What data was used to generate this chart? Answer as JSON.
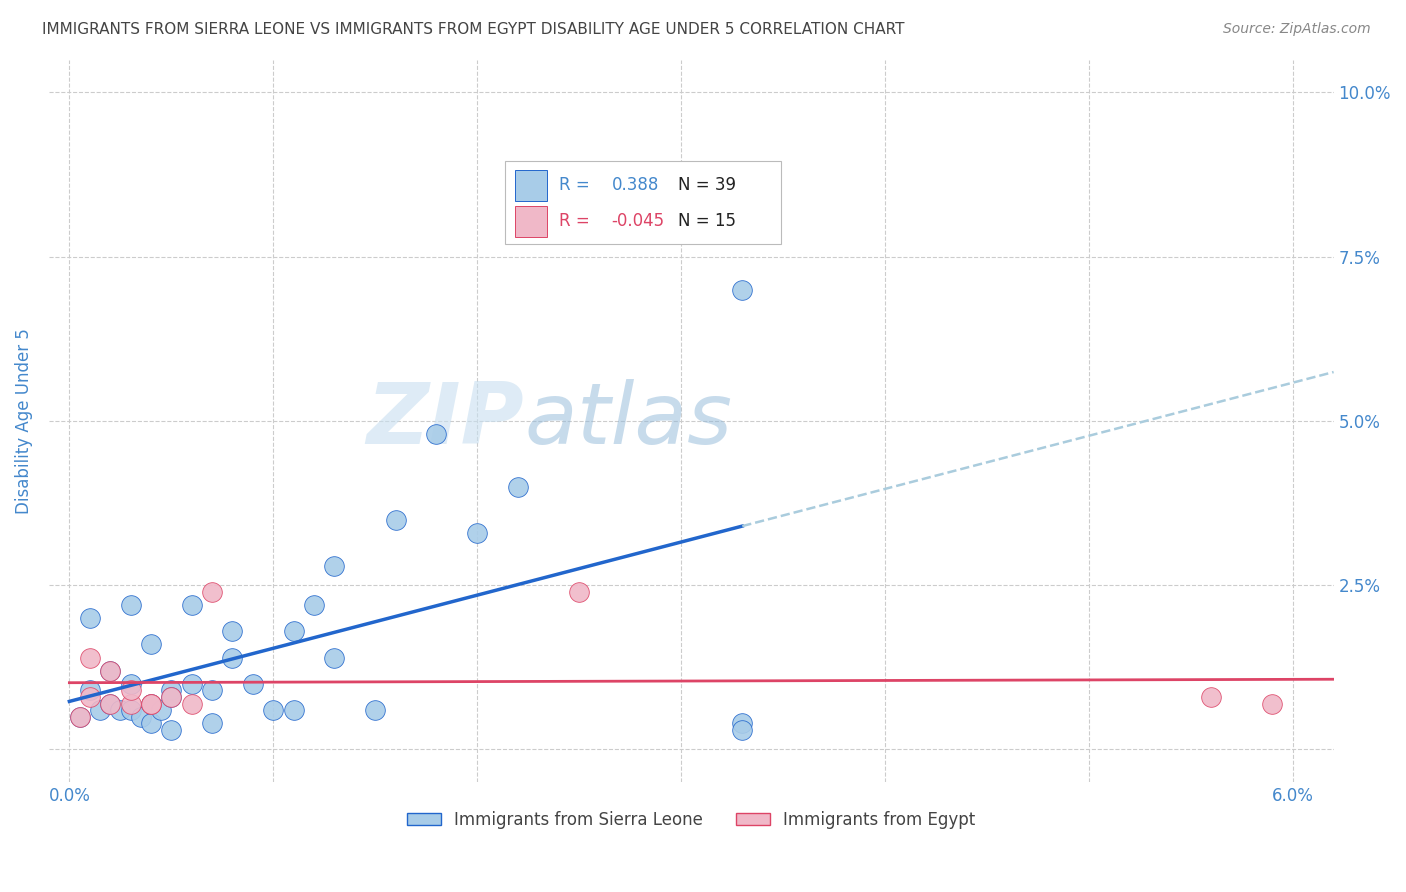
{
  "title": "IMMIGRANTS FROM SIERRA LEONE VS IMMIGRANTS FROM EGYPT DISABILITY AGE UNDER 5 CORRELATION CHART",
  "source": "Source: ZipAtlas.com",
  "ylabel": "Disability Age Under 5",
  "xlim": [
    -0.001,
    0.062
  ],
  "ylim": [
    -0.005,
    0.105
  ],
  "xticks": [
    0.0,
    0.01,
    0.02,
    0.03,
    0.04,
    0.05,
    0.06
  ],
  "xticklabels": [
    "0.0%",
    "",
    "",
    "",
    "",
    "",
    "6.0%"
  ],
  "yticks_right": [
    0.0,
    0.025,
    0.05,
    0.075,
    0.1
  ],
  "yticklabels_right": [
    "",
    "2.5%",
    "5.0%",
    "7.5%",
    "10.0%"
  ],
  "sierra_leone_x": [
    0.0005,
    0.001,
    0.001,
    0.0015,
    0.002,
    0.002,
    0.0025,
    0.003,
    0.003,
    0.003,
    0.0035,
    0.004,
    0.004,
    0.004,
    0.0045,
    0.005,
    0.005,
    0.005,
    0.006,
    0.006,
    0.007,
    0.007,
    0.008,
    0.008,
    0.009,
    0.01,
    0.011,
    0.011,
    0.012,
    0.013,
    0.013,
    0.015,
    0.016,
    0.018,
    0.02,
    0.022,
    0.033,
    0.033,
    0.033
  ],
  "sierra_leone_y": [
    0.005,
    0.009,
    0.02,
    0.006,
    0.007,
    0.012,
    0.006,
    0.006,
    0.01,
    0.022,
    0.005,
    0.004,
    0.007,
    0.016,
    0.006,
    0.009,
    0.008,
    0.003,
    0.01,
    0.022,
    0.004,
    0.009,
    0.014,
    0.018,
    0.01,
    0.006,
    0.006,
    0.018,
    0.022,
    0.014,
    0.028,
    0.006,
    0.035,
    0.048,
    0.033,
    0.04,
    0.07,
    0.004,
    0.003
  ],
  "egypt_x": [
    0.0005,
    0.001,
    0.001,
    0.002,
    0.002,
    0.003,
    0.003,
    0.004,
    0.004,
    0.005,
    0.006,
    0.007,
    0.025,
    0.056,
    0.059
  ],
  "egypt_y": [
    0.005,
    0.008,
    0.014,
    0.007,
    0.012,
    0.007,
    0.009,
    0.007,
    0.007,
    0.008,
    0.007,
    0.024,
    0.024,
    0.008,
    0.007
  ],
  "r_sierra_leone": 0.388,
  "n_sierra_leone": 39,
  "r_egypt": -0.045,
  "n_egypt": 15,
  "color_sierra_leone": "#a8cce8",
  "color_egypt": "#f0b8c8",
  "trendline_color_sierra_leone": "#2266cc",
  "trendline_color_egypt": "#dd4466",
  "trendline_extrapolate_color": "#aaccdd",
  "watermark_zip": "ZIP",
  "watermark_atlas": "atlas",
  "background_color": "#ffffff",
  "grid_color": "#cccccc",
  "title_color": "#444444",
  "tick_color": "#4488cc",
  "legend_r_color_sl": "#4488cc",
  "legend_n_color_sl": "#222222",
  "legend_r_color_eg": "#dd4466",
  "legend_n_color_eg": "#222222"
}
